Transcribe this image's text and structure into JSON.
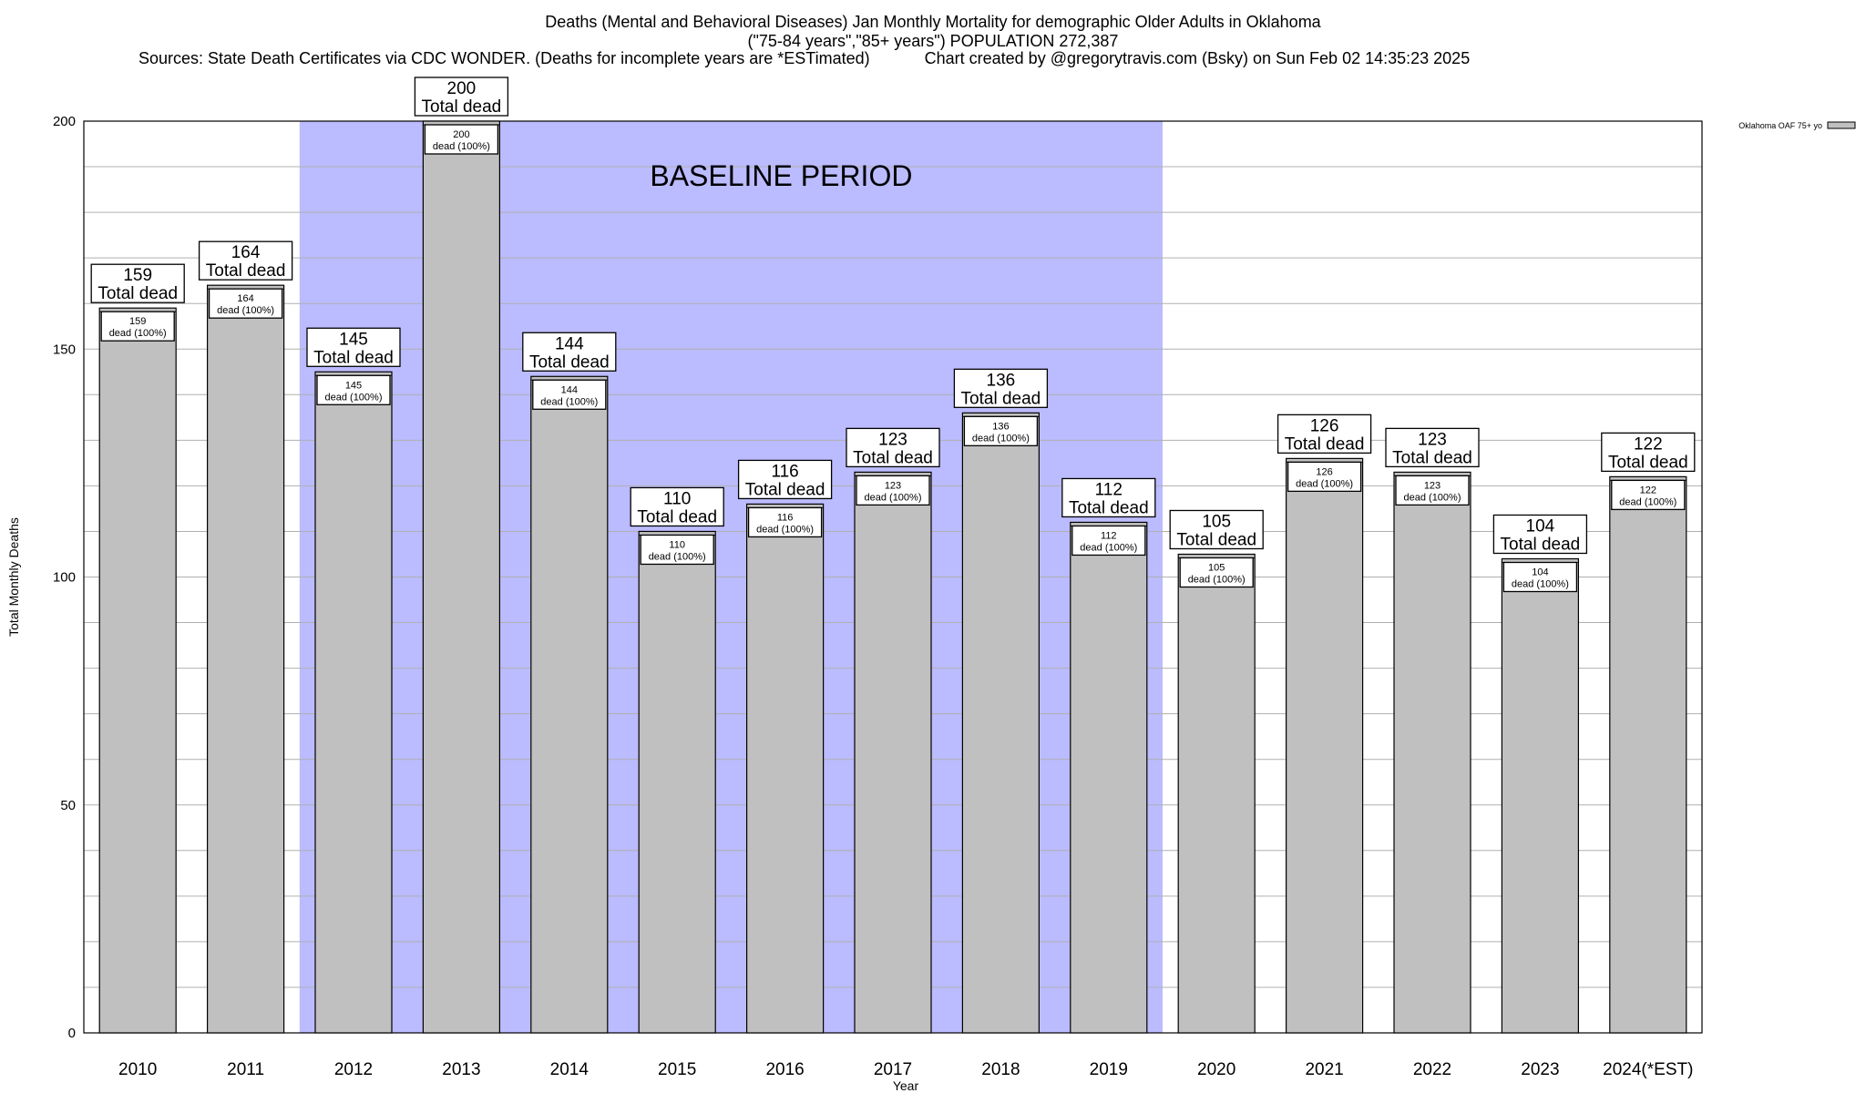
{
  "chart_data": {
    "type": "bar",
    "title": "Deaths (Mental and Behavioral Diseases) Jan Monthly Mortality for demographic Older Adults in Oklahoma",
    "subtitle": "(\"75-84 years\",\"85+ years\") POPULATION 272,387",
    "sources": "Sources: State Death Certificates via CDC WONDER. (Deaths for incomplete years are *ESTimated)",
    "credit": "Chart created by @gregorytravis.com (Bsky) on Sun Feb 02 14:35:23 2025",
    "xlabel": "Year",
    "ylabel": "Total Monthly Deaths",
    "ylim": [
      0,
      200
    ],
    "yticks": [
      0,
      50,
      100,
      150,
      200
    ],
    "grid": true,
    "legend": "Oklahoma OAF 75+ yo",
    "legend_position": "top-right",
    "baseline_label": "BASELINE PERIOD",
    "baseline_range": [
      "2012",
      "2019"
    ],
    "total_label": "Total dead",
    "inner_label": "dead (100%)",
    "categories": [
      "2010",
      "2011",
      "2012",
      "2013",
      "2014",
      "2015",
      "2016",
      "2017",
      "2018",
      "2019",
      "2020",
      "2021",
      "2022",
      "2023",
      "2024(*EST)"
    ],
    "values": [
      159,
      164,
      145,
      200,
      144,
      110,
      116,
      123,
      136,
      112,
      105,
      126,
      123,
      104,
      122
    ],
    "colors": {
      "bar": "#c0c0c0",
      "baseline": "#bbbbff",
      "grid": "#b0b0b0"
    }
  }
}
